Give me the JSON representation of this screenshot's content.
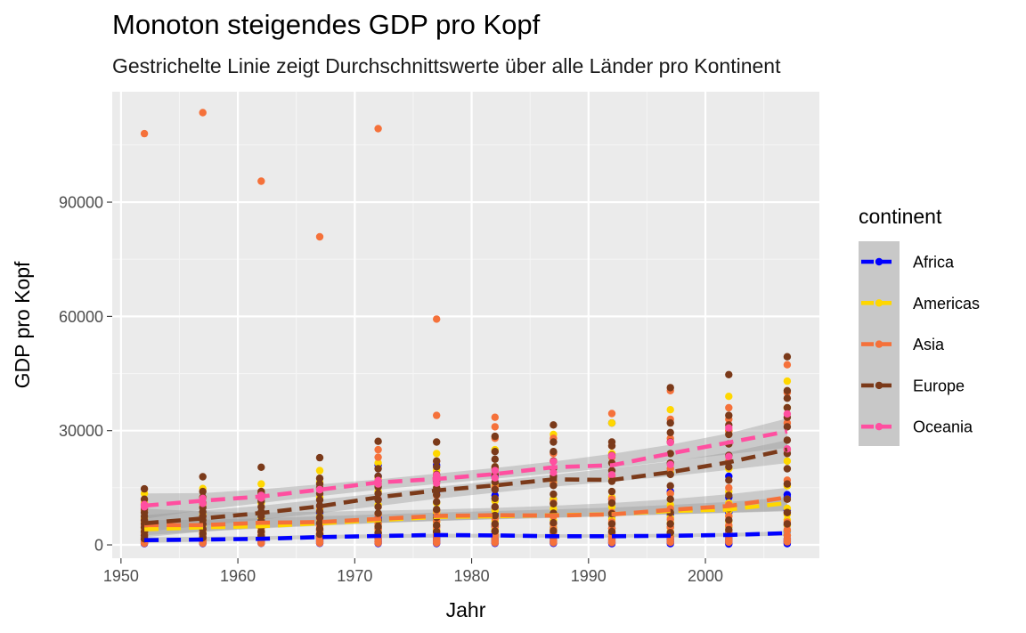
{
  "chart_data": {
    "type": "scatter",
    "title": "Monoton steigendes GDP pro Kopf",
    "subtitle": "Gestrichelte Linie zeigt Durchschnittswerte über alle Länder pro Kontinent",
    "xlabel": "Jahr",
    "ylabel": "GDP pro Kopf",
    "xlim": [
      1949.25,
      2009.75
    ],
    "ylim": [
      -3500,
      119000
    ],
    "x_ticks": [
      1950,
      1960,
      1970,
      1980,
      1990,
      2000
    ],
    "x_tick_labels": [
      "1950",
      "1960",
      "1970",
      "1980",
      "1990",
      "2000"
    ],
    "y_ticks": [
      0,
      30000,
      60000,
      90000
    ],
    "y_tick_labels": [
      "0",
      "30000",
      "60000",
      "90000"
    ],
    "grid": true,
    "legend": {
      "title": "continent",
      "position": "right",
      "entries": [
        "Africa",
        "Americas",
        "Asia",
        "Europe",
        "Oceania"
      ]
    },
    "colors": {
      "Africa": "#0000ff",
      "Americas": "#ffd700",
      "Asia": "#f5713a",
      "Europe": "#7b3a1a",
      "Oceania": "#ff4fa0"
    },
    "years": [
      1952,
      1957,
      1962,
      1967,
      1972,
      1977,
      1982,
      1987,
      1992,
      1997,
      2002,
      2007
    ],
    "series": [
      {
        "name": "Africa",
        "points": {
          "1952": [
            300,
            600,
            900,
            1200,
            1600,
            2000,
            2500,
            3200,
            4500
          ],
          "1957": [
            350,
            650,
            1000,
            1400,
            1800,
            2300,
            3000,
            4000,
            5400
          ],
          "1962": [
            400,
            700,
            1100,
            1500,
            2000,
            2600,
            3300,
            4600,
            6600
          ],
          "1967": [
            400,
            750,
            1150,
            1600,
            2200,
            2900,
            3800,
            5500,
            8400
          ],
          "1972": [
            350,
            800,
            1200,
            1700,
            2400,
            3200,
            4300,
            7000,
            12000,
            18000,
            21000
          ],
          "1977": [
            350,
            750,
            1200,
            1800,
            2500,
            3500,
            4900,
            8000,
            14000,
            21000
          ],
          "1982": [
            400,
            700,
            1150,
            1700,
            2500,
            3400,
            4800,
            8000,
            13000,
            18000
          ],
          "1987": [
            400,
            700,
            1100,
            1600,
            2300,
            3200,
            4500,
            7500,
            12000
          ],
          "1992": [
            300,
            650,
            1000,
            1500,
            2200,
            3100,
            4400,
            7500,
            12000,
            32000
          ],
          "1997": [
            300,
            650,
            1000,
            1500,
            2200,
            3200,
            4600,
            8000,
            14000
          ],
          "2002": [
            250,
            650,
            1000,
            1500,
            2300,
            3300,
            4800,
            8500,
            12500,
            18000
          ],
          "2007": [
            300,
            700,
            1100,
            1600,
            2500,
            3600,
            5200,
            9000,
            12500,
            13200
          ]
        }
      },
      {
        "name": "Americas",
        "points": {
          "1952": [
            1400,
            2000,
            2500,
            3000,
            3700,
            4500,
            5900,
            7000,
            10000,
            11000,
            13500
          ],
          "1957": [
            1600,
            2200,
            2800,
            3400,
            4200,
            5000,
            6500,
            8000,
            10500,
            12500,
            14800
          ],
          "1962": [
            1800,
            2400,
            3100,
            3800,
            4500,
            5500,
            7000,
            8500,
            11000,
            14000,
            16000
          ],
          "1967": [
            2000,
            2700,
            3400,
            4200,
            5000,
            6000,
            7500,
            9500,
            12500,
            16500,
            19500
          ],
          "1972": [
            2200,
            3000,
            3800,
            4600,
            5500,
            6500,
            8000,
            10500,
            14000,
            17500,
            21500
          ],
          "1977": [
            2400,
            3200,
            4000,
            5000,
            6000,
            7000,
            8500,
            11000,
            15000,
            19500,
            24000
          ],
          "1982": [
            2500,
            3300,
            4200,
            5200,
            6300,
            7500,
            9000,
            11500,
            15500,
            20500,
            25000
          ],
          "1987": [
            2500,
            3400,
            4300,
            5400,
            6500,
            7800,
            9500,
            12000,
            16500,
            22000,
            29000
          ],
          "1992": [
            2300,
            3300,
            4300,
            5500,
            6800,
            8000,
            10000,
            12500,
            17500,
            24000,
            32000
          ],
          "1997": [
            2400,
            3500,
            4600,
            5800,
            7200,
            8500,
            10500,
            13500,
            19000,
            27000,
            35500
          ],
          "2002": [
            2400,
            3600,
            4800,
            6200,
            7600,
            9000,
            11000,
            14000,
            20000,
            30000,
            39000
          ],
          "2007": [
            2500,
            3800,
            5200,
            6600,
            8000,
            9600,
            12000,
            15500,
            22000,
            36000,
            43000
          ]
        }
      },
      {
        "name": "Asia",
        "points": {
          "1952": [
            400,
            700,
            1000,
            1500,
            2000,
            2700,
            3500,
            4800,
            6500,
            9000,
            108000
          ],
          "1957": [
            450,
            750,
            1100,
            1600,
            2200,
            3000,
            3900,
            5400,
            7500,
            11000,
            113500
          ],
          "1962": [
            450,
            800,
            1200,
            1800,
            2500,
            3400,
            4500,
            6000,
            8500,
            12000,
            95500
          ],
          "1967": [
            500,
            850,
            1300,
            2000,
            2800,
            3800,
            5000,
            7000,
            10000,
            15000,
            80900
          ],
          "1972": [
            500,
            900,
            1400,
            2200,
            3100,
            4200,
            5600,
            8000,
            12000,
            16000,
            23000,
            25000,
            109300
          ],
          "1977": [
            500,
            900,
            1500,
            2400,
            3400,
            4600,
            6200,
            9000,
            13000,
            18000,
            22000,
            34000,
            59300
          ],
          "1982": [
            550,
            950,
            1600,
            2600,
            3700,
            5000,
            7000,
            10000,
            15000,
            20000,
            28000,
            31000,
            33500
          ],
          "1987": [
            600,
            1000,
            1700,
            2800,
            4000,
            5500,
            7500,
            11000,
            16000,
            22000,
            24000,
            28000
          ],
          "1992": [
            600,
            1100,
            1800,
            3000,
            4300,
            6000,
            8500,
            12000,
            18000,
            23000,
            26000,
            34500
          ],
          "1997": [
            650,
            1200,
            2000,
            3300,
            4700,
            6700,
            9500,
            13500,
            20000,
            28000,
            33000,
            40500
          ],
          "2002": [
            700,
            1300,
            2200,
            3600,
            5200,
            7500,
            10500,
            15000,
            22000,
            30000,
            33000,
            36000
          ],
          "2007": [
            800,
            1500,
            2500,
            4000,
            6000,
            8500,
            12000,
            17000,
            25000,
            32000,
            40000,
            47300
          ]
        }
      },
      {
        "name": "Europe",
        "points": {
          "1952": [
            1600,
            2500,
            3500,
            4600,
            5500,
            6500,
            7500,
            8500,
            9500,
            10500,
            12000,
            14700
          ],
          "1957": [
            1900,
            3000,
            4200,
            5500,
            6500,
            7500,
            8700,
            9800,
            11000,
            12500,
            14000,
            17900
          ],
          "1962": [
            2300,
            3500,
            4800,
            6200,
            7500,
            8700,
            10000,
            11500,
            12500,
            13500,
            14000,
            20400
          ],
          "1967": [
            2800,
            4200,
            5700,
            7200,
            8800,
            10300,
            11800,
            13500,
            15000,
            16000,
            17500,
            22900
          ],
          "1972": [
            3200,
            4800,
            6500,
            8300,
            10000,
            11800,
            13500,
            15200,
            16800,
            18000,
            20000,
            27200
          ],
          "1977": [
            3500,
            5200,
            7200,
            9300,
            11300,
            13200,
            15000,
            16800,
            18500,
            20500,
            22000,
            27000
          ],
          "1982": [
            3600,
            5500,
            7700,
            10000,
            12200,
            14500,
            16500,
            18500,
            20500,
            22500,
            24500,
            28500
          ],
          "1987": [
            3700,
            5800,
            8300,
            10800,
            13300,
            15600,
            18000,
            20000,
            22000,
            24500,
            27000,
            31500
          ],
          "1992": [
            3500,
            5500,
            8200,
            11000,
            14000,
            16700,
            19500,
            21500,
            23500,
            26000,
            27000
          ],
          "1997": [
            3200,
            5500,
            8500,
            12000,
            15500,
            18500,
            21500,
            24000,
            27000,
            29500,
            32000,
            41300
          ],
          "2002": [
            4000,
            6500,
            9500,
            13000,
            17000,
            20500,
            23500,
            26500,
            29000,
            31500,
            34000,
            44700
          ],
          "2007": [
            5500,
            8500,
            12000,
            16000,
            20000,
            24000,
            27500,
            31000,
            33500,
            36000,
            38500,
            40500,
            49400
          ]
        }
      },
      {
        "name": "Oceania",
        "points": {
          "1952": [
            10000,
            10600
          ],
          "1957": [
            10900,
            12200
          ],
          "1962": [
            12300,
            13000
          ],
          "1967": [
            14500,
            14500
          ],
          "1972": [
            16000,
            16900
          ],
          "1977": [
            16200,
            18300
          ],
          "1982": [
            17600,
            19500
          ],
          "1987": [
            19000,
            21900
          ],
          "1992": [
            18400,
            23400
          ],
          "1997": [
            21100,
            26900
          ],
          "2002": [
            23200,
            30700
          ],
          "2007": [
            25200,
            34400
          ]
        }
      }
    ],
    "mean_lines": [
      {
        "name": "Africa",
        "values": [
          1250,
          1390,
          1600,
          2050,
          2340,
          2590,
          2480,
          2280,
          2280,
          2380,
          2600,
          3090
        ]
      },
      {
        "name": "Americas",
        "values": [
          4080,
          4620,
          4900,
          5670,
          6490,
          7350,
          7510,
          7790,
          8040,
          8890,
          9290,
          11000
        ]
      },
      {
        "name": "Asia",
        "values": [
          5200,
          5200,
          5800,
          6000,
          6800,
          7600,
          7800,
          7700,
          8000,
          9200,
          10200,
          12500
        ]
      },
      {
        "name": "Europe",
        "values": [
          5660,
          6960,
          8370,
          10140,
          12480,
          14280,
          15620,
          17210,
          17060,
          19080,
          21710,
          25050
        ]
      },
      {
        "name": "Oceania",
        "values": [
          10300,
          11600,
          12700,
          14500,
          16400,
          17300,
          18600,
          20400,
          20900,
          24000,
          26900,
          29800
        ]
      }
    ],
    "smooth_bands": [
      {
        "name": "Africa",
        "lower": [
          500,
          900,
          1300,
          1600,
          1800,
          1900,
          1900,
          1900,
          1900,
          2000,
          2200,
          2400
        ],
        "upper": [
          2000,
          2100,
          2300,
          2600,
          2800,
          2900,
          2900,
          2800,
          2800,
          2900,
          3100,
          3600
        ]
      },
      {
        "name": "Americas",
        "lower": [
          2500,
          3500,
          4300,
          5000,
          5700,
          6300,
          6800,
          7200,
          7600,
          8000,
          8400,
          8800
        ],
        "upper": [
          6500,
          6600,
          7000,
          7500,
          8000,
          8500,
          8900,
          9300,
          9800,
          10500,
          11300,
          12500
        ]
      },
      {
        "name": "Asia",
        "lower": [
          2000,
          3500,
          4500,
          5200,
          5800,
          6300,
          6700,
          7100,
          7500,
          8000,
          8500,
          9000
        ],
        "upper": [
          9500,
          8800,
          8500,
          8700,
          9000,
          9300,
          9700,
          10300,
          11000,
          12000,
          13300,
          15000
        ]
      },
      {
        "name": "Europe",
        "lower": [
          3500,
          5000,
          6600,
          8300,
          10200,
          12100,
          13700,
          15300,
          16600,
          18000,
          19700,
          21500
        ],
        "upper": [
          7800,
          9000,
          10300,
          11900,
          13500,
          15200,
          16800,
          18400,
          20100,
          21900,
          24300,
          27500
        ]
      },
      {
        "name": "Oceania",
        "lower": [
          6800,
          9200,
          11000,
          12800,
          14500,
          16000,
          17400,
          18800,
          20200,
          22000,
          23800,
          25500
        ],
        "upper": [
          13500,
          13600,
          14600,
          15900,
          17200,
          18700,
          20200,
          21900,
          23900,
          26300,
          29300,
          33200
        ]
      }
    ]
  }
}
